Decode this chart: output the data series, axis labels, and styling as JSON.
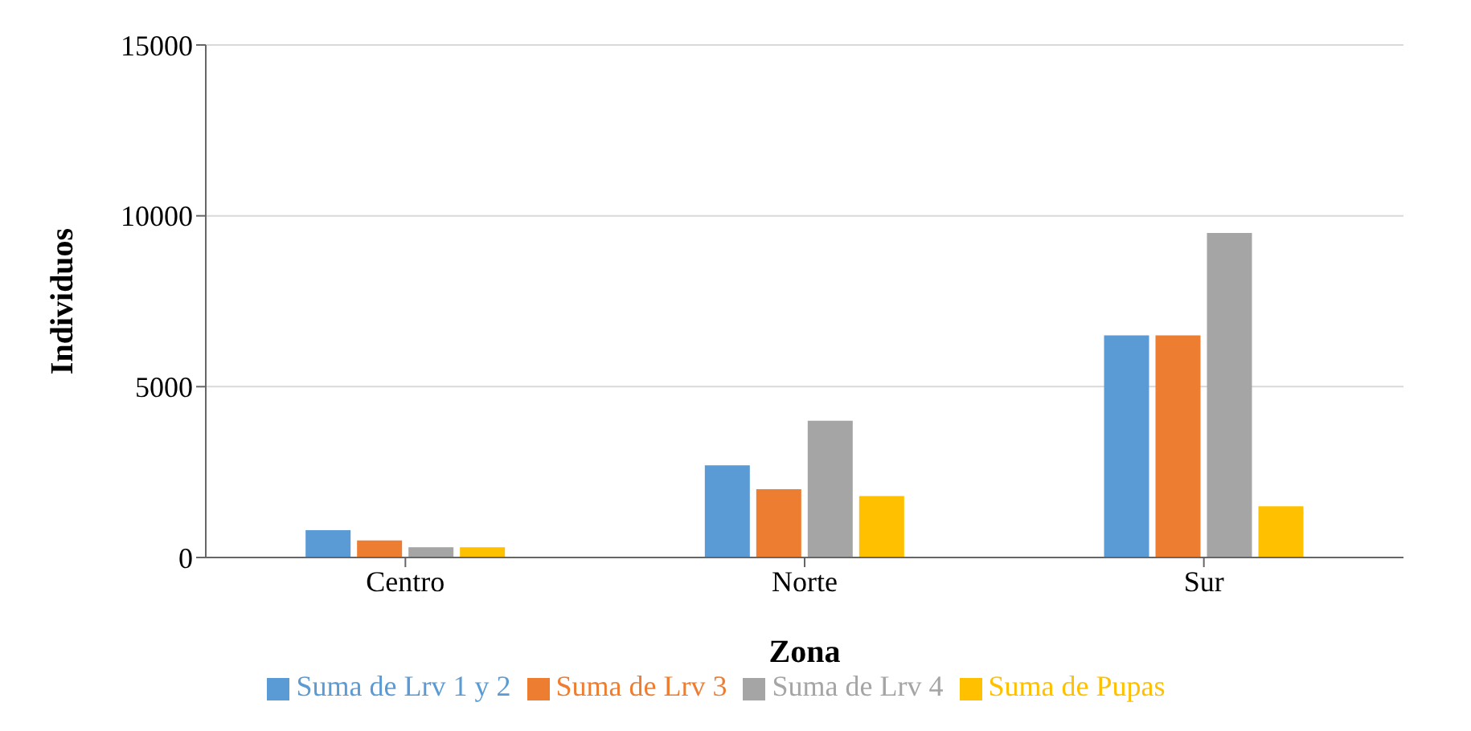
{
  "chart_data": {
    "type": "bar",
    "xlabel": "Zona",
    "ylabel": "Individuos",
    "categories": [
      "Centro",
      "Norte",
      "Sur"
    ],
    "series": [
      {
        "name": "Suma de Lrv 1 y 2",
        "color": "#5b9bd5",
        "values": [
          800,
          2700,
          6500
        ]
      },
      {
        "name": "Suma de Lrv 3",
        "color": "#ed7d31",
        "values": [
          500,
          2000,
          6500
        ]
      },
      {
        "name": "Suma de Lrv 4",
        "color": "#a5a5a5",
        "values": [
          300,
          4000,
          9500
        ]
      },
      {
        "name": "Suma de Pupas",
        "color": "#ffc000",
        "values": [
          300,
          1800,
          1500
        ]
      }
    ],
    "ylim": [
      0,
      15000
    ],
    "yticks": [
      0,
      5000,
      10000,
      15000
    ],
    "grid": "y",
    "legend": "bottom"
  }
}
